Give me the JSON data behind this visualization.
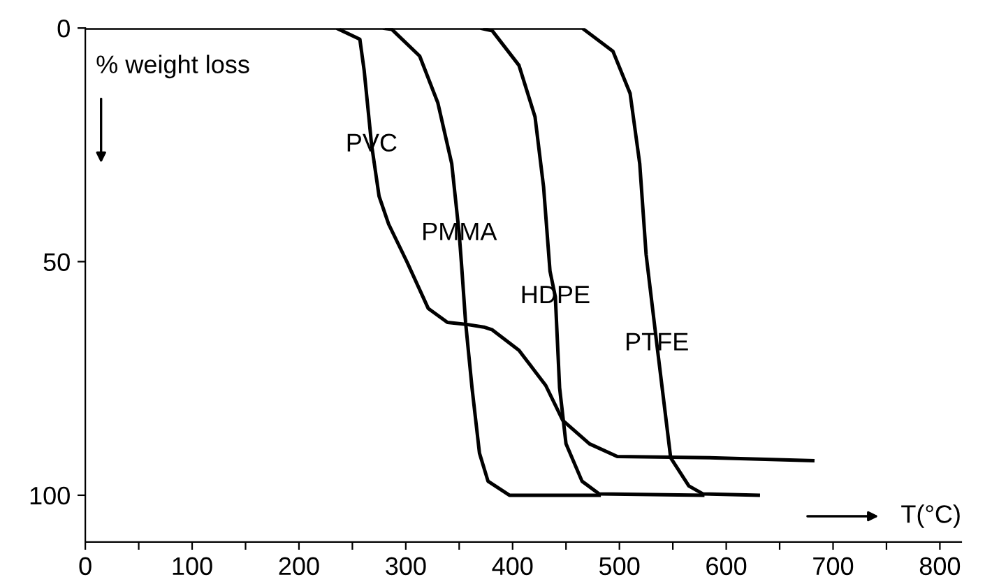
{
  "chart_data": {
    "type": "line",
    "xlabel": "T(°C)",
    "ylabel": "% weight loss",
    "xlim": [
      0,
      820
    ],
    "ylim": [
      110,
      0
    ],
    "xticks": [
      0,
      {
        "value": 50,
        "label": null
      },
      100,
      {
        "value": 150,
        "label": null
      },
      200,
      {
        "value": 250,
        "label": null
      },
      300,
      {
        "value": 350,
        "label": null
      },
      400,
      {
        "value": 450,
        "label": null
      },
      500,
      {
        "value": 550,
        "label": null
      },
      600,
      {
        "value": 650,
        "label": null
      },
      700,
      {
        "value": 750,
        "label": null
      },
      800
    ],
    "yticks": [
      0,
      50,
      100
    ],
    "grid": false,
    "legend": false,
    "marker": "none",
    "line_style": "solid",
    "series": [
      {
        "color": "#000000",
        "x": [
          0,
          235,
          257,
          261,
          268,
          275,
          284,
          301,
          321,
          339,
          356,
          373,
          381,
          406,
          431,
          447,
          472,
          498,
          590,
          681
        ],
        "values": [
          0,
          0,
          2.4,
          9,
          25,
          36,
          42,
          50,
          60,
          63,
          63.4,
          64,
          64.6,
          69,
          76.5,
          84,
          89,
          91.7,
          92,
          92.6
        ]
      },
      {
        "color": "#000000",
        "x": [
          240,
          277,
          287,
          313,
          330,
          343,
          350,
          352,
          356,
          362,
          369,
          377,
          397,
          481
        ],
        "values": [
          0,
          0,
          0.3,
          6,
          16,
          29,
          44,
          50,
          63,
          77,
          91,
          97,
          100,
          100
        ]
      },
      {
        "color": "#000000",
        "x": [
          282,
          369,
          381,
          406,
          421,
          429,
          435,
          440,
          444,
          450,
          465,
          481,
          578
        ],
        "values": [
          0,
          0,
          0.6,
          8,
          19,
          34,
          52,
          57.5,
          77,
          89,
          97,
          99.7,
          100
        ]
      },
      {
        "color": "#000000",
        "x": [
          374,
          465,
          494,
          510,
          519,
          525,
          535,
          548,
          565,
          578,
          630
        ],
        "values": [
          0,
          0,
          5,
          14,
          29,
          48.5,
          67.6,
          92,
          98,
          99.7,
          100
        ]
      }
    ],
    "annotations": [
      {
        "text": "PVC",
        "x": 268,
        "y": 25
      },
      {
        "text": "PMMA",
        "x": 350,
        "y": 44
      },
      {
        "text": "HDPE",
        "x": 440,
        "y": 57.5
      },
      {
        "text": "PTFE",
        "x": 535,
        "y": 67.6
      }
    ]
  }
}
